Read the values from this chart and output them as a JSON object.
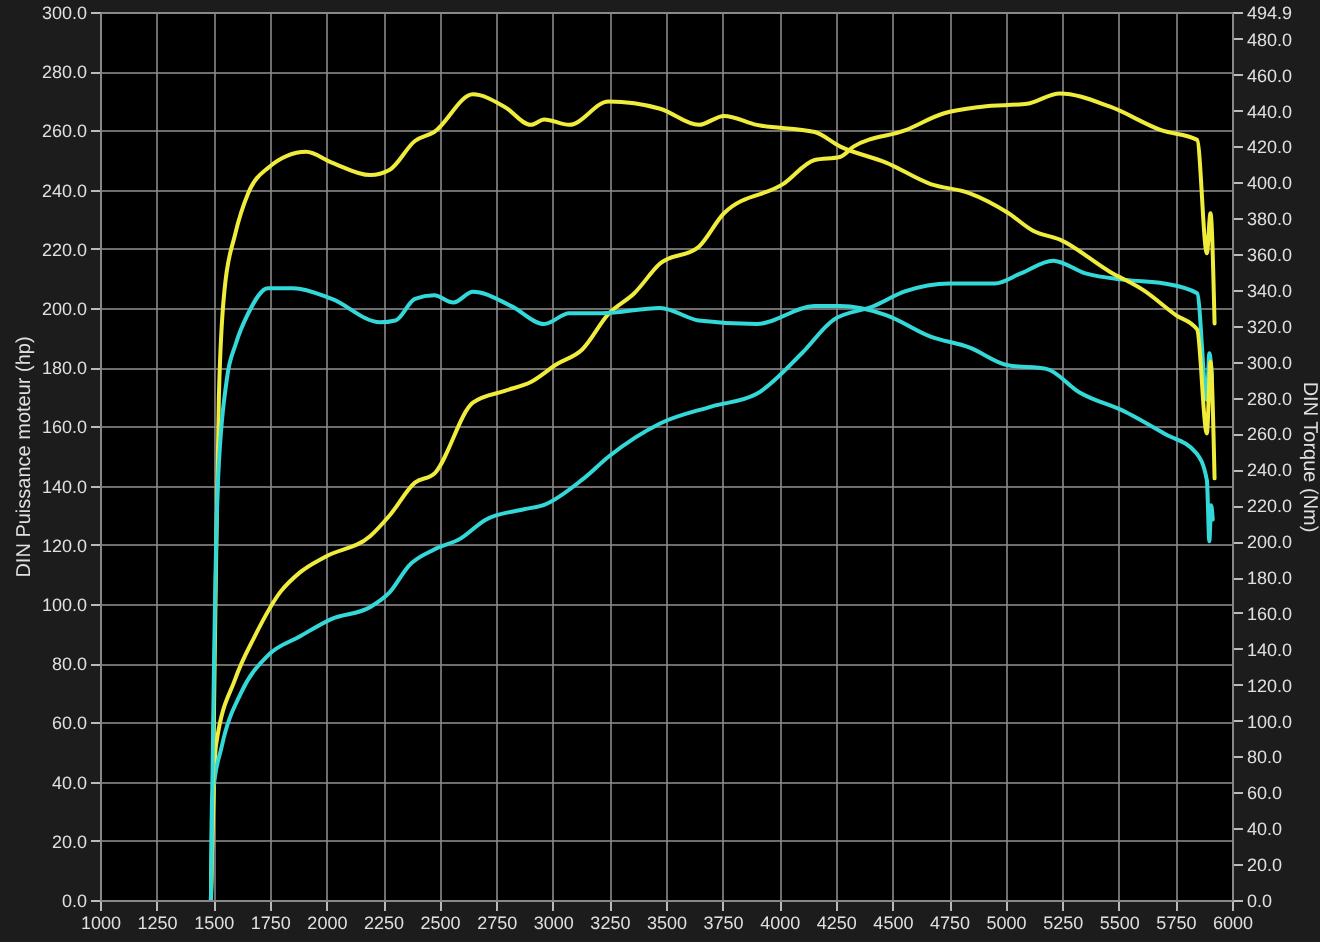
{
  "chart_data": {
    "type": "line",
    "ylabel": "DIN Puissance moteur (hp)",
    "y2label": "DIN Torque (Nm)",
    "xlim": [
      1000,
      6000
    ],
    "xticks": [
      1000,
      1250,
      1500,
      1750,
      2000,
      2250,
      2500,
      2750,
      3000,
      3250,
      3500,
      3750,
      4000,
      4250,
      4500,
      4750,
      5000,
      5250,
      5500,
      5750,
      6000
    ],
    "ylim": [
      0,
      300
    ],
    "yticks": [
      {
        "value": 0,
        "label": "0.0"
      },
      {
        "value": 20,
        "label": "20.0"
      },
      {
        "value": 40,
        "label": "40.0"
      },
      {
        "value": 60,
        "label": "60.0"
      },
      {
        "value": 80,
        "label": "80.0"
      },
      {
        "value": 100,
        "label": "100.0"
      },
      {
        "value": 120,
        "label": "120.0"
      },
      {
        "value": 140,
        "label": "140.0"
      },
      {
        "value": 160,
        "label": "160.0"
      },
      {
        "value": 180,
        "label": "180.0"
      },
      {
        "value": 200,
        "label": "200.0"
      },
      {
        "value": 220,
        "label": "220.0"
      },
      {
        "value": 240,
        "label": "240.0"
      },
      {
        "value": 260,
        "label": "260.0"
      },
      {
        "value": 280,
        "label": "280.0"
      },
      {
        "value": 300,
        "label": "300.0"
      }
    ],
    "y2lim": [
      0,
      494.9
    ],
    "y2ticks": [
      {
        "value": 0,
        "label": "0.0"
      },
      {
        "value": 20,
        "label": "20.0"
      },
      {
        "value": 40,
        "label": "40.0"
      },
      {
        "value": 60,
        "label": "60.0"
      },
      {
        "value": 80,
        "label": "80.0"
      },
      {
        "value": 100,
        "label": "100.0"
      },
      {
        "value": 120,
        "label": "120.0"
      },
      {
        "value": 140,
        "label": "140.0"
      },
      {
        "value": 160,
        "label": "160.0"
      },
      {
        "value": 180,
        "label": "180.0"
      },
      {
        "value": 200,
        "label": "200.0"
      },
      {
        "value": 220,
        "label": "220.0"
      },
      {
        "value": 240,
        "label": "240.0"
      },
      {
        "value": 260,
        "label": "260.0"
      },
      {
        "value": 280,
        "label": "280.0"
      },
      {
        "value": 300,
        "label": "300.0"
      },
      {
        "value": 320,
        "label": "320.0"
      },
      {
        "value": 340,
        "label": "340.0"
      },
      {
        "value": 360,
        "label": "360.0"
      },
      {
        "value": 380,
        "label": "380.0"
      },
      {
        "value": 400,
        "label": "400.0"
      },
      {
        "value": 420,
        "label": "420.0"
      },
      {
        "value": 440,
        "label": "440.0"
      },
      {
        "value": 460,
        "label": "460.0"
      },
      {
        "value": 480,
        "label": "480.0"
      },
      {
        "value": 494.9,
        "label": "494.9"
      }
    ],
    "grid": true,
    "line_style": "solid",
    "marker": "none",
    "series": [
      {
        "color": "#f0ec3c",
        "x": [
          1490,
          1512,
          1597,
          1683,
          1796,
          1882,
          1996,
          2194,
          2280,
          2391,
          2476,
          2647,
          2788,
          2903,
          3017,
          3130,
          3246,
          3360,
          3474,
          3645,
          3756,
          4020,
          4157,
          4268,
          4328,
          4555,
          4725,
          4896,
          5095,
          5240,
          5462,
          5690,
          5846,
          5889,
          5905,
          5923
        ],
        "values": [
          0,
          52,
          74.6,
          89,
          104,
          110.6,
          116,
          123,
          130,
          141,
          144,
          168,
          172,
          175,
          181,
          186,
          198,
          205,
          215,
          220.7,
          232,
          242,
          250,
          251,
          254.5,
          260,
          265.7,
          268,
          269,
          272.5,
          268,
          260,
          256.8,
          218.5,
          232,
          194.8
        ]
      },
      {
        "color": "#33d8d8",
        "x": [
          1490,
          1495,
          1538,
          1623,
          1740,
          1882,
          2024,
          2194,
          2280,
          2365,
          2476,
          2590,
          2704,
          2873,
          2962,
          3130,
          3250,
          3474,
          3700,
          3901,
          4100,
          4240,
          4413,
          4555,
          4754,
          4953,
          5067,
          5210,
          5353,
          5530,
          5700,
          5846,
          5889,
          5900,
          5912
        ],
        "values": [
          0,
          34,
          52,
          70,
          82.5,
          89,
          95,
          99,
          104,
          113,
          118.4,
          122,
          128.5,
          132,
          133.5,
          142,
          150,
          161,
          166.7,
          171,
          184.7,
          196,
          200.5,
          205.6,
          208.3,
          208.3,
          211.7,
          216,
          211.7,
          209.5,
          208.3,
          205,
          169,
          184.7,
          176
        ]
      },
      {
        "color": "#f0ec3c",
        "axis": "y2",
        "x": [
          1490,
          1495,
          1510,
          1525,
          1550,
          1597,
          1655,
          1742,
          1910,
          2024,
          2194,
          2280,
          2391,
          2476,
          2647,
          2788,
          2903,
          2962,
          3073,
          3246,
          3474,
          3645,
          3756,
          3901,
          4157,
          4268,
          4472,
          4669,
          4839,
          5010,
          5121,
          5240,
          5462,
          5607,
          5752,
          5846,
          5889,
          5905,
          5923
        ],
        "values": [
          0,
          30,
          165,
          280,
          340,
          371,
          394,
          408,
          417,
          411,
          404,
          407,
          423,
          428,
          449,
          442,
          432,
          435,
          432,
          445,
          441,
          432,
          437,
          432,
          428,
          420,
          411,
          399,
          394,
          383,
          373,
          368,
          350,
          340,
          326,
          318,
          260,
          300,
          235
        ]
      },
      {
        "color": "#33d8d8",
        "axis": "y2",
        "x": [
          1490,
          1500,
          1520,
          1560,
          1600,
          1655,
          1742,
          1853,
          2024,
          2237,
          2305,
          2391,
          2476,
          2561,
          2647,
          2817,
          2962,
          3073,
          3218,
          3474,
          3645,
          3901,
          4157,
          4268,
          4472,
          4669,
          4839,
          5010,
          5180,
          5325,
          5530,
          5700,
          5843,
          5889,
          5900,
          5908,
          5915
        ],
        "values": [
          0,
          100,
          230,
          290,
          310,
          327,
          341,
          341,
          335,
          322,
          323,
          335,
          337,
          333,
          339,
          331,
          321,
          327,
          327,
          330,
          323,
          321,
          331,
          331,
          326,
          314,
          308,
          298,
          296,
          283,
          272,
          260,
          249,
          234,
          200,
          220,
          212
        ]
      }
    ]
  }
}
